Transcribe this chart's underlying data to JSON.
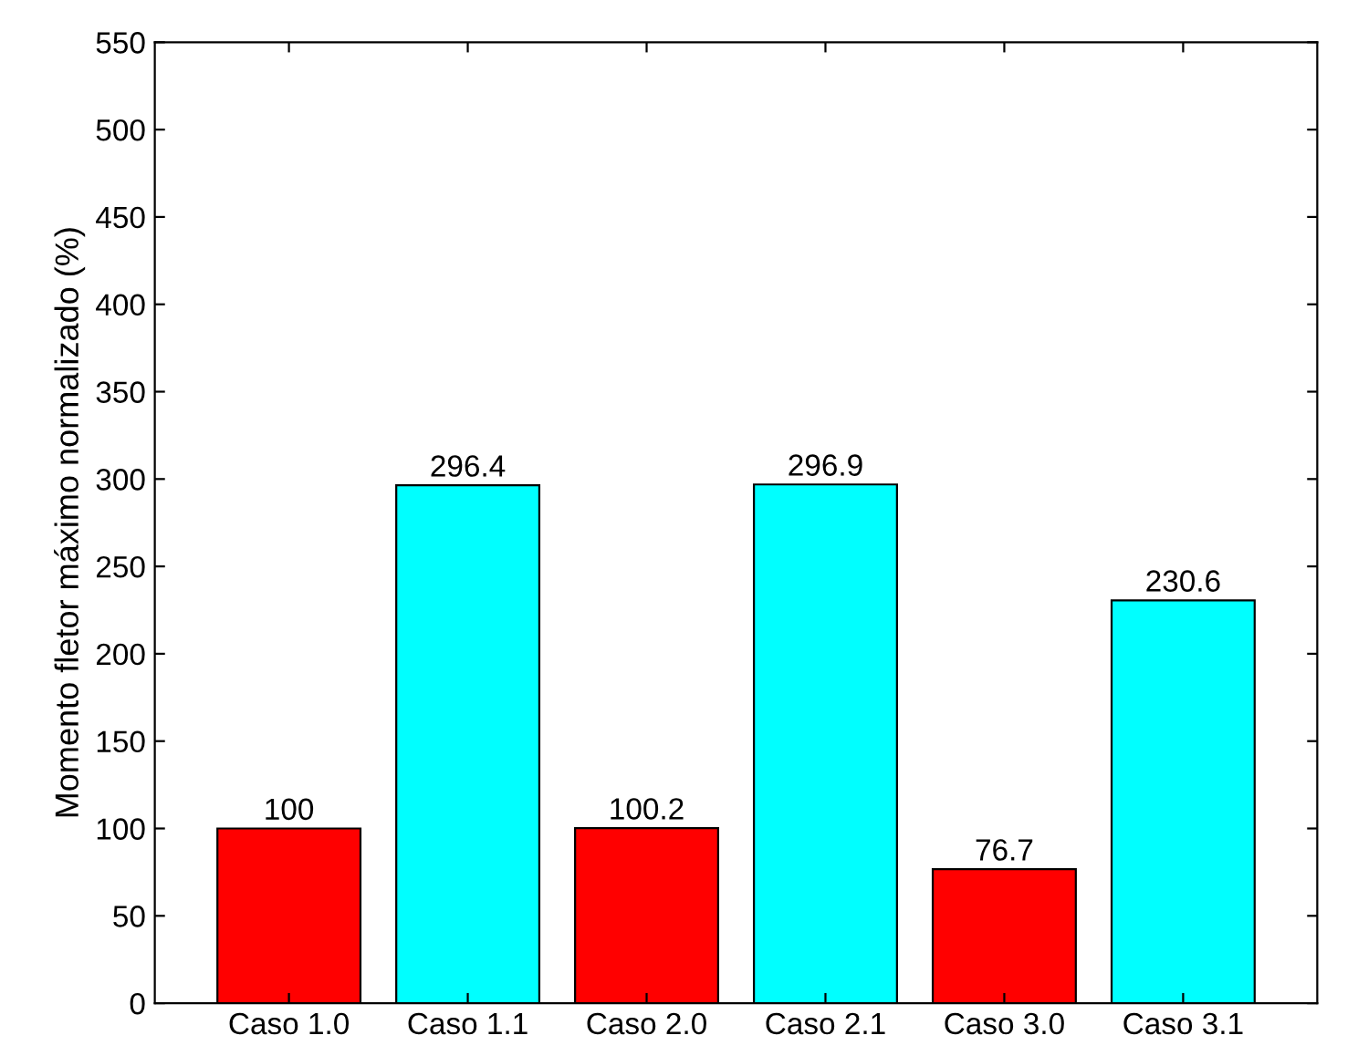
{
  "chart_data": {
    "type": "bar",
    "ylabel": "Momento fletor máximo normalizado (%)",
    "categories": [
      "Caso 1.0",
      "Caso 1.1",
      "Caso 2.0",
      "Caso 2.1",
      "Caso 3.0",
      "Caso 3.1"
    ],
    "values": [
      100,
      296.4,
      100.2,
      296.9,
      76.7,
      230.6
    ],
    "colors": [
      "#ff0000",
      "#00ffff",
      "#ff0000",
      "#00ffff",
      "#ff0000",
      "#00ffff"
    ],
    "ylim": [
      0,
      550
    ],
    "yticks": [
      0,
      50,
      100,
      150,
      200,
      250,
      300,
      350,
      400,
      450,
      500,
      550
    ],
    "data_labels": true,
    "grid": false
  }
}
